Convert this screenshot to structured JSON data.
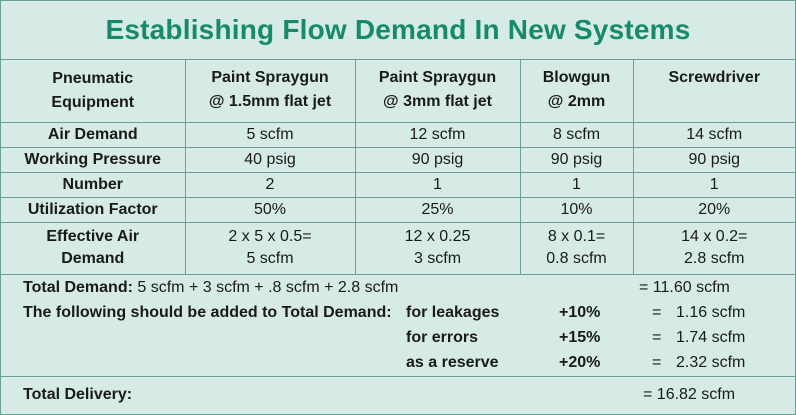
{
  "title": "Establishing Flow Demand In New Systems",
  "header": {
    "col0": [
      "Pneumatic",
      "Equipment"
    ],
    "col1": [
      "Paint Spraygun",
      "@ 1.5mm flat jet"
    ],
    "col2": [
      "Paint Spraygun",
      "@ 3mm flat jet"
    ],
    "col3": [
      "Blowgun",
      "@ 2mm"
    ],
    "col4": [
      "Screwdriver",
      ""
    ]
  },
  "rows": [
    {
      "label": "Air Demand",
      "values": [
        "5 scfm",
        "12 scfm",
        "8 scfm",
        "14 scfm"
      ]
    },
    {
      "label": "Working Pressure",
      "values": [
        "40 psig",
        "90 psig",
        "90 psig",
        "90 psig"
      ]
    },
    {
      "label": "Number",
      "values": [
        "2",
        "1",
        "1",
        "1"
      ]
    },
    {
      "label": "Utilization Factor",
      "values": [
        "50%",
        "25%",
        "10%",
        "20%"
      ]
    }
  ],
  "effective": {
    "label": [
      "Effective Air",
      "Demand"
    ],
    "values": [
      [
        "2 x 5 x 0.5=",
        "5 scfm"
      ],
      [
        "12 x 0.25",
        "3 scfm"
      ],
      [
        "8 x 0.1=",
        "0.8 scfm"
      ],
      [
        "14 x 0.2=",
        "2.8 scfm"
      ]
    ]
  },
  "totals": {
    "demand_label": "Total Demand:",
    "demand_expr": "5 scfm + 3 scfm + .8 scfm + 2.8 scfm",
    "demand_result": "= 11.60 scfm",
    "added_label": "The following should be added to Total Demand:",
    "additions": [
      {
        "name": "for leakages",
        "pct": "+10%",
        "eq": "=",
        "value": "1.16 scfm"
      },
      {
        "name": "for errors",
        "pct": "+15%",
        "eq": "=",
        "value": "1.74 scfm"
      },
      {
        "name": "as a reserve",
        "pct": "+20%",
        "eq": "=",
        "value": "2.32 scfm"
      }
    ]
  },
  "delivery": {
    "label": "Total Delivery:",
    "value": "= 16.82 scfm"
  }
}
